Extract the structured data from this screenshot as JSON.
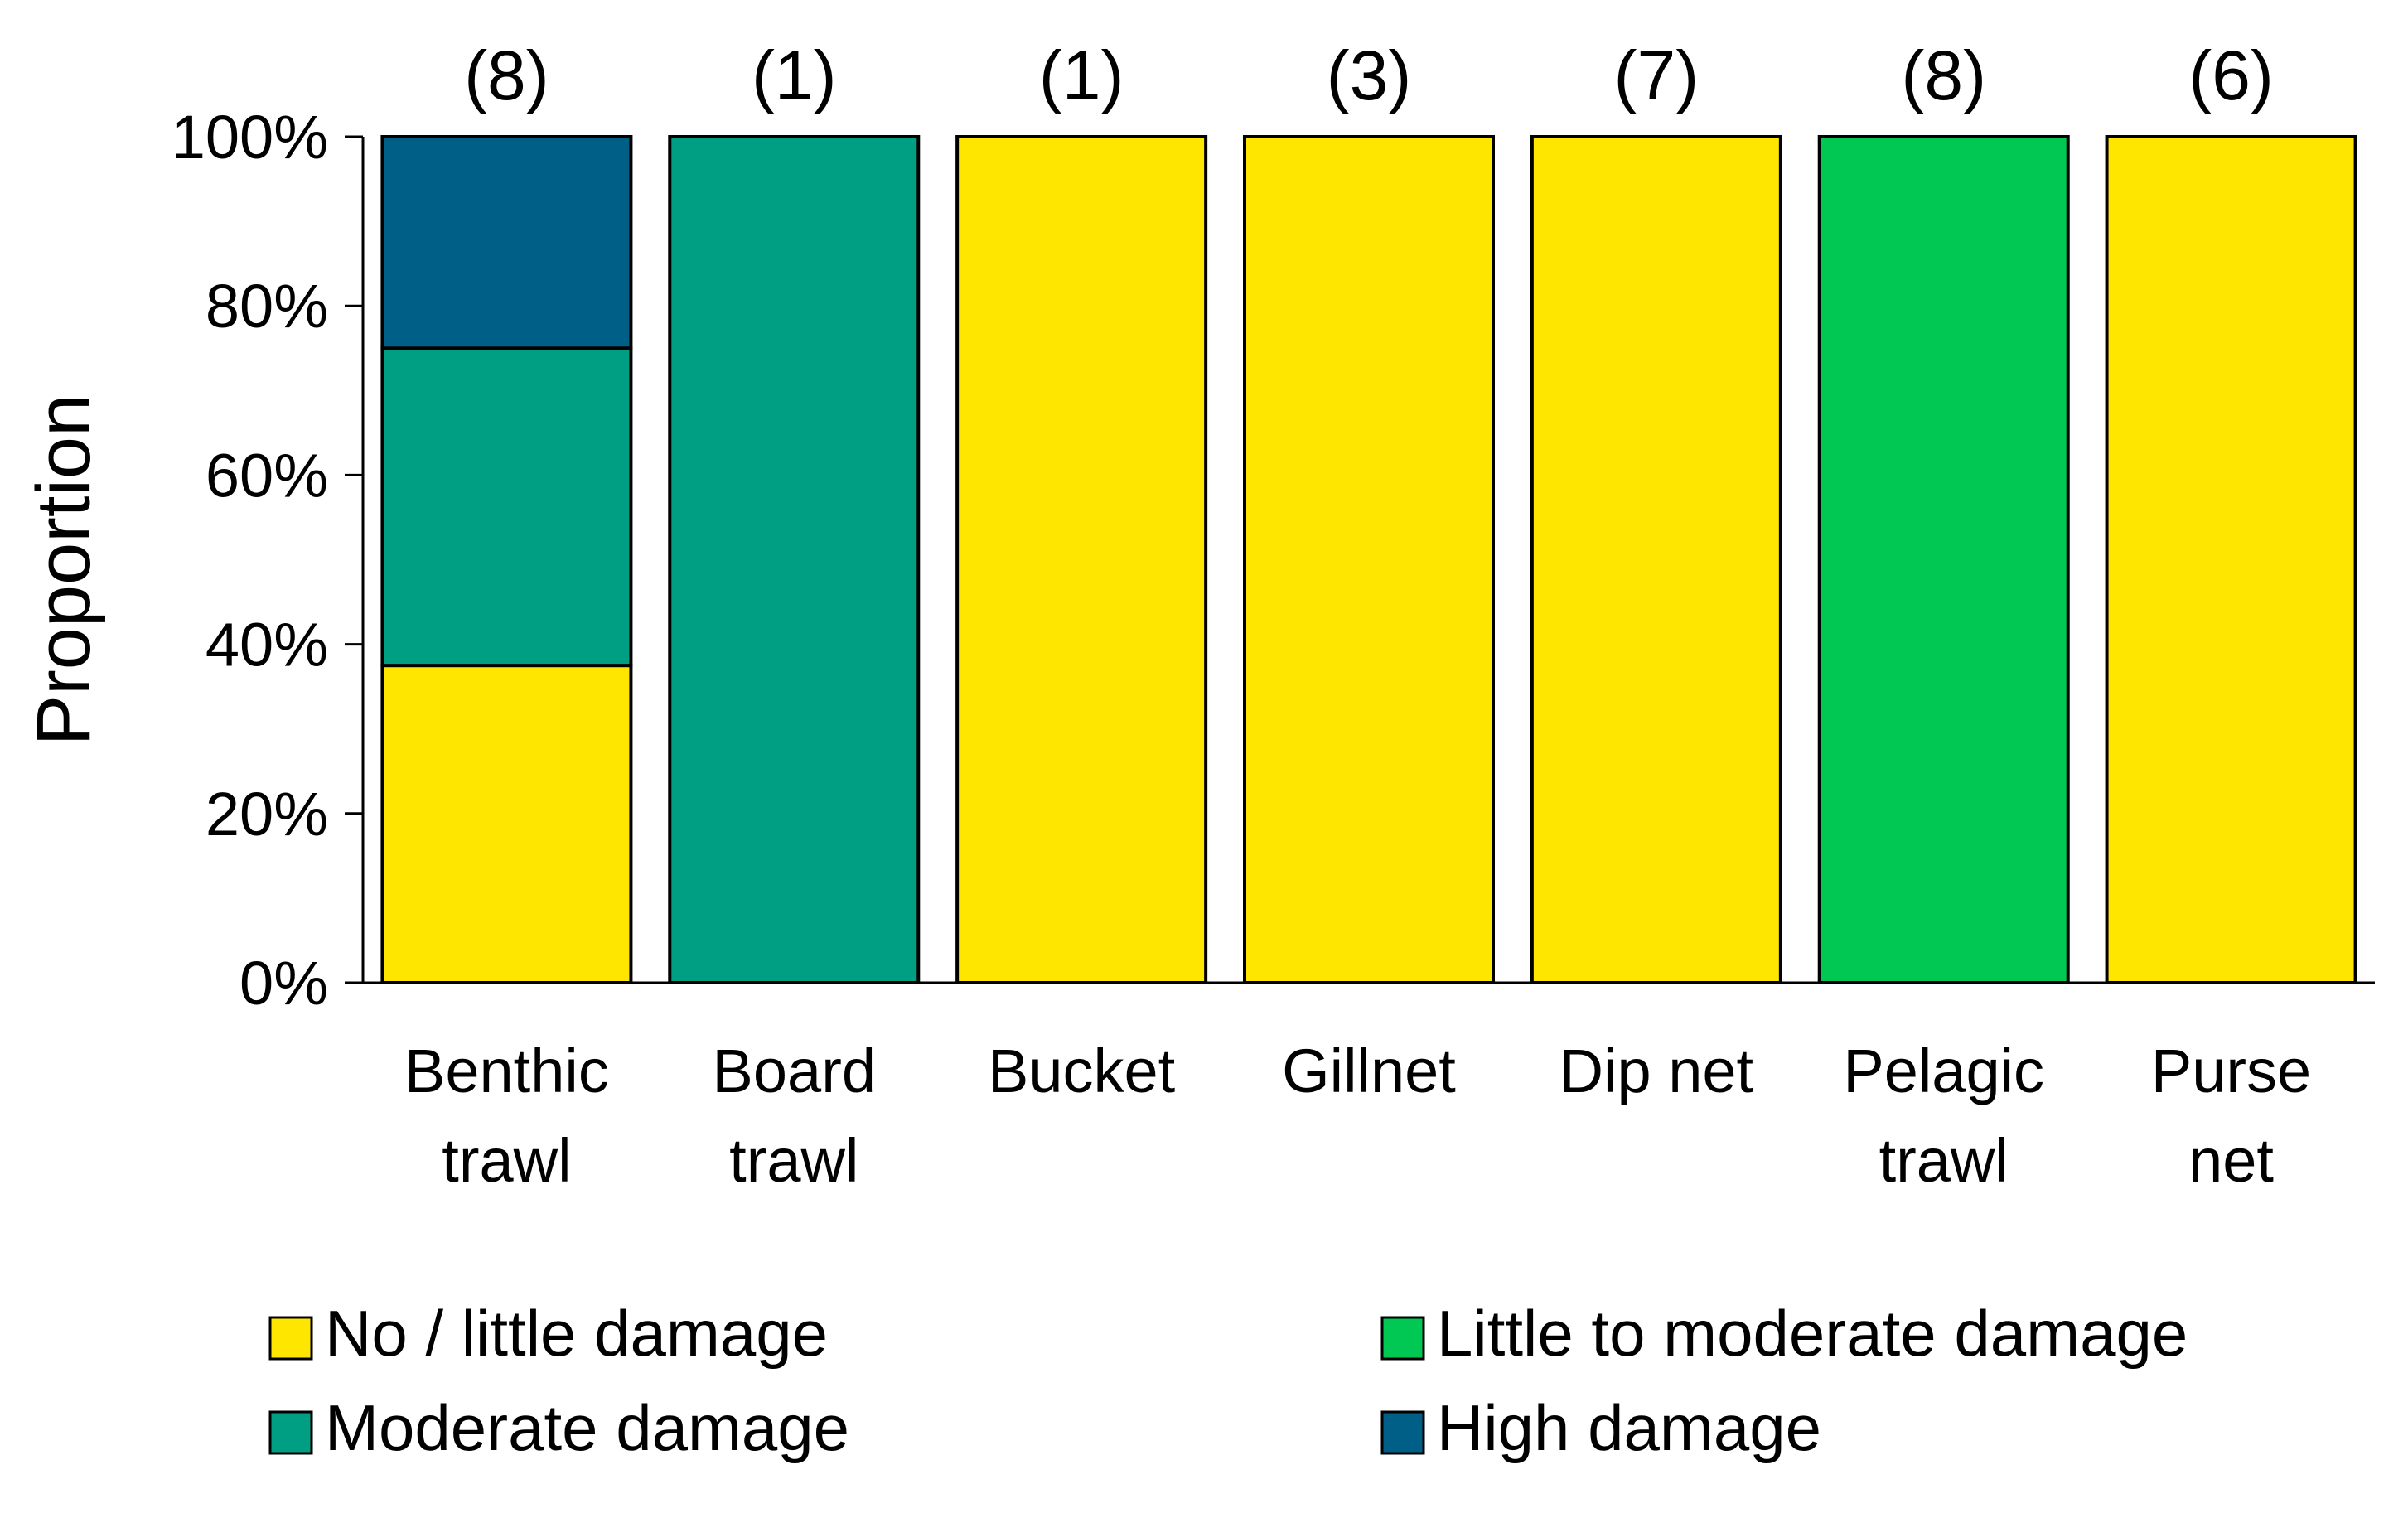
{
  "chart_data": {
    "type": "bar",
    "stacked": true,
    "title": "",
    "xlabel": "",
    "ylabel": "Proportion",
    "ylim": [
      0,
      100
    ],
    "yticks": [
      "0%",
      "20%",
      "40%",
      "60%",
      "80%",
      "100%"
    ],
    "categories": [
      [
        "Benthic",
        "trawl"
      ],
      [
        "Board",
        "trawl"
      ],
      [
        "Bucket"
      ],
      [
        "Gillnet"
      ],
      [
        "Dip net"
      ],
      [
        "Pelagic",
        "trawl"
      ],
      [
        "Purse",
        "net"
      ]
    ],
    "counts": [
      "(8)",
      "(1)",
      "(1)",
      "(3)",
      "(7)",
      "(8)",
      "(6)"
    ],
    "series": [
      {
        "name": "No / little damage",
        "color": "#FFE600",
        "values": [
          37.5,
          0,
          100,
          100,
          100,
          0,
          100
        ]
      },
      {
        "name": "Little to moderate damage",
        "color": "#00C853",
        "values": [
          0,
          0,
          0,
          0,
          0,
          100,
          0
        ]
      },
      {
        "name": "Moderate damage",
        "color": "#009E82",
        "values": [
          37.5,
          100,
          0,
          0,
          0,
          0,
          0
        ]
      },
      {
        "name": "High damage",
        "color": "#005F86",
        "values": [
          25,
          0,
          0,
          0,
          0,
          0,
          0
        ]
      }
    ],
    "grid": false,
    "legend_position": "bottom"
  }
}
